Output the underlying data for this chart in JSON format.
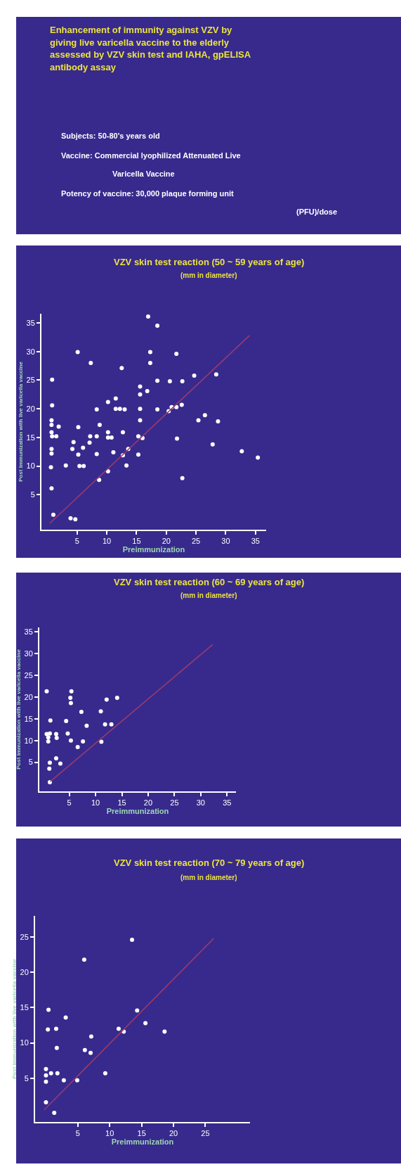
{
  "chart_data": [
    {
      "type": "other",
      "title": "Enhancement of immunity against VZV by giving live varicella vaccine to the elderly assessed by VZV skin test and IAHA, gpELISA antibody assay",
      "annotations": [
        "Subjects: 50-80's years old",
        "Vaccine: Commercial lyophilized Attenuated Live Varicella Vaccine",
        "Potency of vaccine: 30,000 plaque forming unit (PFU)/dose"
      ]
    },
    {
      "type": "scatter",
      "title": "VZV skin test reaction (50 ~ 59 years of age)",
      "subtitle": "(mm in diameter)",
      "xlabel": "Preimmunization",
      "ylabel": "Post immunization with live varicella vaccine",
      "xlim": [
        -1,
        36.8
      ],
      "ylim": [
        -1.1,
        36.6
      ],
      "xticks": [
        5,
        10,
        15,
        20,
        25,
        30,
        35
      ],
      "yticks": [
        5,
        10,
        15,
        20,
        25,
        30,
        35
      ],
      "series": [
        {
          "type": "scatter",
          "marker": "circle",
          "color": "#ffffff",
          "x": [
            16.95,
            18.5,
            5.1,
            17.3,
            21.7,
            7.3,
            17.3,
            12.5,
            0.8,
            18.5,
            20.6,
            22.7,
            24.7,
            28.4,
            15.6,
            16.8,
            15.6,
            11.5,
            10.2,
            0.8,
            8.3,
            11.5,
            12.2,
            13.0,
            15.6,
            18.5,
            20.4,
            20.9,
            21.7,
            22.6,
            26.5,
            25.4,
            28.7,
            15.6,
            0.7,
            0.7,
            1.9,
            5.2,
            8.8,
            10.2,
            12.7,
            0.7,
            0.8,
            1.5,
            7.2,
            8.3,
            10.2,
            10.8,
            15.3,
            16.0,
            21.8,
            4.4,
            7.1,
            27.8,
            4.2,
            6.0,
            13.6,
            0.7,
            11.1,
            32.7,
            0.7,
            5.2,
            8.3,
            12.7,
            15.3,
            35.4,
            3.1,
            5.4,
            6.1,
            13.3,
            0.6,
            10.2,
            8.7,
            22.7,
            0.7,
            1.0,
            3.9,
            4.7
          ],
          "values": [
            36.1,
            34.5,
            29.9,
            29.9,
            29.6,
            28.0,
            28.0,
            27.1,
            25.1,
            24.9,
            24.8,
            24.8,
            25.8,
            26.0,
            23.9,
            23.1,
            22.5,
            21.8,
            21.2,
            20.6,
            19.9,
            20.0,
            20.0,
            19.9,
            20.0,
            19.9,
            19.6,
            20.3,
            20.3,
            20.7,
            18.9,
            18.0,
            17.8,
            18.0,
            18.0,
            17.2,
            16.9,
            16.8,
            17.2,
            15.9,
            15.9,
            15.9,
            15.2,
            15.2,
            15.2,
            15.2,
            15.0,
            15.0,
            15.2,
            14.9,
            14.8,
            14.2,
            14.1,
            13.8,
            13.0,
            13.2,
            13.0,
            13.0,
            12.4,
            12.6,
            12.2,
            12.0,
            12.1,
            11.9,
            12.0,
            11.5,
            10.1,
            10.0,
            10.0,
            10.1,
            9.8,
            9.1,
            7.6,
            7.9,
            6.1,
            1.5,
            0.9,
            0.7
          ]
        },
        {
          "type": "line",
          "color": "#9a3a6e",
          "line_style": "solid",
          "x": [
            0.4,
            34
          ],
          "values": [
            0,
            32.8
          ]
        }
      ]
    },
    {
      "type": "scatter",
      "title": "VZV skin test reaction (60 ~ 69 years of age)",
      "subtitle": "(mm in diameter)",
      "xlabel": "Preimmunization",
      "ylabel": "Post immunization with live varicella vaccine",
      "xlim": [
        -0.7,
        36.7
      ],
      "ylim": [
        -1.7,
        36
      ],
      "xticks": [
        5,
        10,
        15,
        20,
        25,
        30,
        35
      ],
      "yticks": [
        5,
        10,
        15,
        20,
        25,
        30,
        35
      ],
      "series": [
        {
          "type": "scatter",
          "marker": "circle",
          "color": "#ffffff",
          "x": [
            0.7,
            5.4,
            5.2,
            5.3,
            12.1,
            14.1,
            7.3,
            11.0,
            1.4,
            4.4,
            8.3,
            11.8,
            13.0,
            0.7,
            1.3,
            2.5,
            4.7,
            1.0,
            2.6,
            1.0,
            5.3,
            7.6,
            11.1,
            6.6,
            2.5,
            1.3,
            3.3,
            1.2,
            1.3
          ],
          "values": [
            21.3,
            21.3,
            19.8,
            18.6,
            19.4,
            19.8,
            16.6,
            16.7,
            14.6,
            14.5,
            13.4,
            13.7,
            13.7,
            11.5,
            11.6,
            11.5,
            11.6,
            10.7,
            10.6,
            9.8,
            10.0,
            9.8,
            9.7,
            8.5,
            5.9,
            4.9,
            4.7,
            3.5,
            0.4
          ]
        },
        {
          "type": "line",
          "color": "#9a3a6e",
          "line_style": "solid",
          "x": [
            1.4,
            32.3
          ],
          "values": [
            0.6,
            32.1
          ]
        }
      ]
    },
    {
      "type": "scatter",
      "title": "VZV skin test reaction (70 ~ 79 years of age)",
      "subtitle": "(mm in diameter)",
      "xlabel": "Preimmunization",
      "ylabel": "Post immunization with live varicella vaccine",
      "xlim": [
        -1.7,
        32
      ],
      "ylim": [
        -1.2,
        28
      ],
      "xticks": [
        5,
        10,
        15,
        20,
        25
      ],
      "yticks": [
        5,
        10,
        15,
        20,
        25
      ],
      "series": [
        {
          "type": "scatter",
          "marker": "circle",
          "color": "#ffffff",
          "x": [
            13.5,
            6.0,
            0.4,
            14.3,
            3.1,
            15.6,
            0.3,
            1.6,
            11.4,
            12.2,
            18.6,
            7.1,
            1.7,
            6.1,
            7.0,
            0,
            0,
            0,
            0.8,
            1.8,
            9.3,
            2.8,
            4.9,
            0,
            1.3
          ],
          "values": [
            24.6,
            21.8,
            14.7,
            14.6,
            13.6,
            12.8,
            11.9,
            12.0,
            12.0,
            11.6,
            11.6,
            10.9,
            9.3,
            9.0,
            8.6,
            6.3,
            5.4,
            4.5,
            5.7,
            5.7,
            5.7,
            4.7,
            4.7,
            1.6,
            0.1
          ]
        },
        {
          "type": "line",
          "color": "#9a3a6e",
          "line_style": "solid",
          "x": [
            -0.3,
            26.3
          ],
          "values": [
            0.5,
            24.8
          ]
        }
      ]
    }
  ]
}
